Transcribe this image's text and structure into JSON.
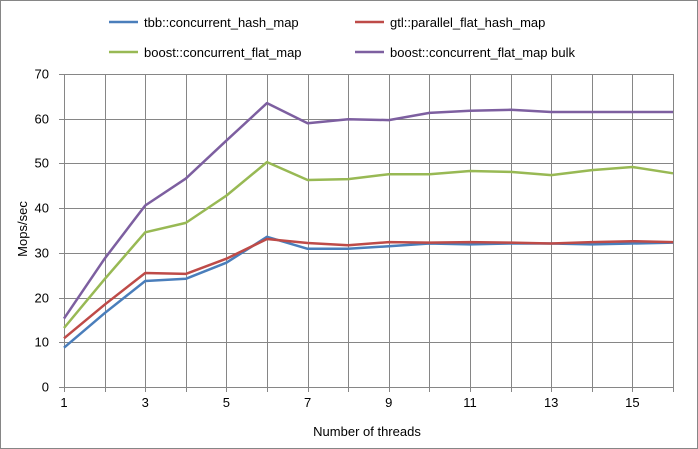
{
  "chart_data": {
    "type": "line",
    "title": "",
    "xlabel": "Number of threads",
    "ylabel": "Mops/sec",
    "xlim": [
      1,
      16
    ],
    "ylim": [
      0,
      70
    ],
    "x_ticks": [
      1,
      3,
      5,
      7,
      9,
      11,
      13,
      15
    ],
    "y_ticks": [
      0,
      10,
      20,
      30,
      40,
      50,
      60,
      70
    ],
    "grid": "vertical and horizontal major gridlines",
    "legend_position": "top",
    "x": [
      1,
      2,
      3,
      4,
      5,
      6,
      7,
      8,
      9,
      10,
      11,
      12,
      13,
      14,
      15,
      16
    ],
    "series": [
      {
        "name": "tbb::concurrent_hash_map",
        "color": "#4a7ebb",
        "values": [
          8.8,
          16.5,
          23.7,
          24.2,
          27.8,
          33.6,
          30.9,
          30.9,
          31.5,
          32.1,
          31.9,
          32.1,
          32.1,
          31.9,
          32.1,
          32.3
        ]
      },
      {
        "name": "gtl::parallel_flat_hash_map",
        "color": "#be4b48",
        "values": [
          10.9,
          18.4,
          25.5,
          25.3,
          28.7,
          33.1,
          32.2,
          31.7,
          32.4,
          32.3,
          32.4,
          32.3,
          32.1,
          32.4,
          32.6,
          32.4
        ]
      },
      {
        "name": "boost::concurrent_flat_map",
        "color": "#98b954",
        "values": [
          13.2,
          24.1,
          34.6,
          36.7,
          42.8,
          50.3,
          46.3,
          46.5,
          47.6,
          47.6,
          48.3,
          48.1,
          47.4,
          48.5,
          49.2,
          47.8
        ]
      },
      {
        "name": "boost::concurrent_flat_map bulk",
        "color": "#7d5fa0",
        "values": [
          15.3,
          28.7,
          40.6,
          46.6,
          55.1,
          63.5,
          59.0,
          59.9,
          59.7,
          61.3,
          61.8,
          62.0,
          61.5,
          61.5,
          61.5,
          61.5
        ]
      }
    ]
  }
}
